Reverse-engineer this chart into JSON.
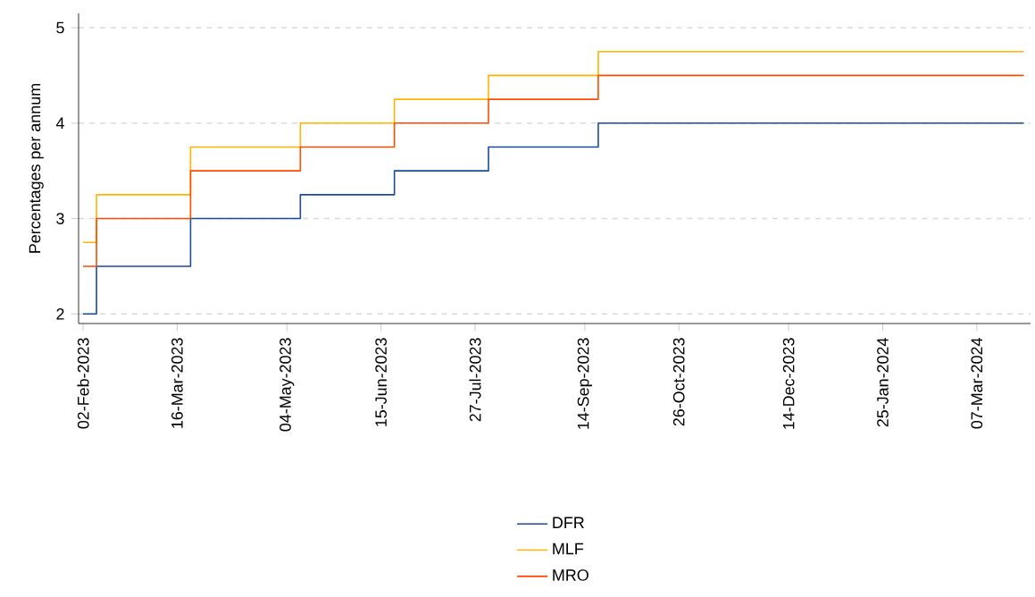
{
  "chart_data": {
    "type": "step",
    "ylabel": "Percentages per annum",
    "x": [
      "2023-02-02",
      "2023-02-08",
      "2023-03-22",
      "2023-05-10",
      "2023-06-21",
      "2023-08-02",
      "2023-09-20",
      "2024-03-28"
    ],
    "series": [
      {
        "name": "DFR",
        "color": "#1a4b9b",
        "values": [
          2.0,
          2.5,
          3.0,
          3.25,
          3.5,
          3.75,
          4.0,
          4.0
        ]
      },
      {
        "name": "MLF",
        "color": "#ffb400",
        "values": [
          2.75,
          3.25,
          3.75,
          4.0,
          4.25,
          4.5,
          4.75,
          4.75
        ]
      },
      {
        "name": "MRO",
        "color": "#ff4b00",
        "values": [
          2.5,
          3.0,
          3.5,
          3.75,
          4.0,
          4.25,
          4.5,
          4.5
        ]
      }
    ],
    "xlim": [
      "2023-01-31",
      "2024-03-31"
    ],
    "xticks": [
      {
        "value": "2023-02-02",
        "label": "02-Feb-2023"
      },
      {
        "value": "2023-03-16",
        "label": "16-Mar-2023"
      },
      {
        "value": "2023-05-04",
        "label": "04-May-2023"
      },
      {
        "value": "2023-06-15",
        "label": "15-Jun-2023"
      },
      {
        "value": "2023-07-27",
        "label": "27-Jul-2023"
      },
      {
        "value": "2023-09-14",
        "label": "14-Sep-2023"
      },
      {
        "value": "2023-10-26",
        "label": "26-Oct-2023"
      },
      {
        "value": "2023-12-14",
        "label": "14-Dec-2023"
      },
      {
        "value": "2024-01-25",
        "label": "25-Jan-2024"
      },
      {
        "value": "2024-03-07",
        "label": "07-Mar-2024"
      }
    ],
    "ylim": [
      1.9,
      5.15
    ],
    "yticks": [
      2,
      3,
      4,
      5
    ],
    "grid": "y",
    "legend": "bottom",
    "marker": "none",
    "line_style": "solid"
  }
}
